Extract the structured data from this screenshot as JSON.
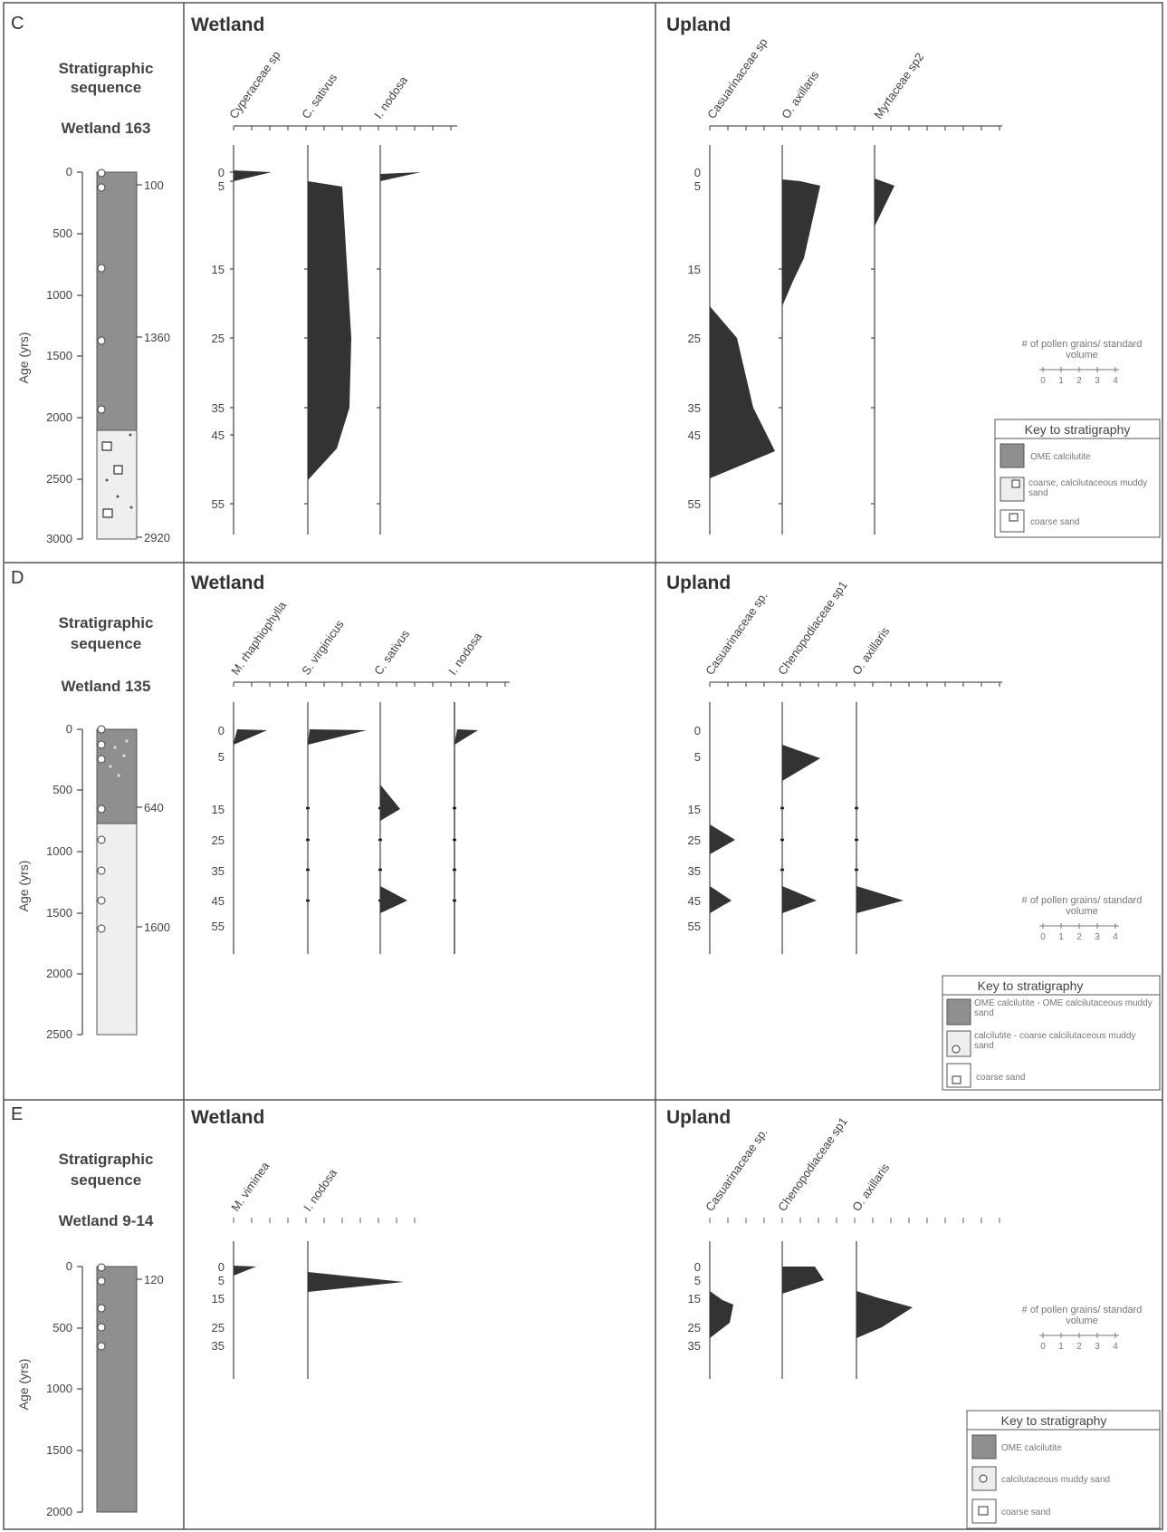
{
  "units_label": "# of pollen grains/ standard volume",
  "units_ticks": [
    "0",
    "1",
    "2",
    "3",
    "4"
  ],
  "panels": [
    {
      "letter": "C",
      "strat_title_1": "Stratigraphic",
      "strat_title_2": "sequence",
      "site": "Wetland 163",
      "age_axis_label": "Age (yrs)",
      "age_ticks": [
        "0",
        "500",
        "1000",
        "1500",
        "2000",
        "2500",
        "3000"
      ],
      "dates": [
        "100",
        "1360",
        "2920"
      ],
      "depth_ticks": [
        "0",
        "5",
        "15",
        "25",
        "35",
        "45",
        "55"
      ],
      "wetland_title": "Wetland",
      "upland_title": "Upland",
      "wetland_taxa": [
        "Cyperaceae sp",
        "C. sativus",
        "I. nodosa"
      ],
      "upland_taxa": [
        "Casuarinaceae sp",
        "O. axillaris",
        "Myrtaceae sp2"
      ],
      "key_title": "Key to stratigraphy",
      "key_items": [
        "OME calcilutite",
        "coarse, calcilutaceous muddy sand",
        "coarse sand"
      ]
    },
    {
      "letter": "D",
      "strat_title_1": "Stratigraphic",
      "strat_title_2": "sequence",
      "site": "Wetland 135",
      "age_axis_label": "Age (yrs)",
      "age_ticks": [
        "0",
        "500",
        "1000",
        "1500",
        "2000",
        "2500"
      ],
      "dates": [
        "640",
        "1600"
      ],
      "depth_ticks": [
        "0",
        "5",
        "15",
        "25",
        "35",
        "45",
        "55"
      ],
      "wetland_title": "Wetland",
      "upland_title": "Upland",
      "wetland_taxa": [
        "M. rhaphiophylla",
        "S. virginicus",
        "C. sativus",
        "I. nodosa"
      ],
      "upland_taxa": [
        "Casuarinaceae sp.",
        "Chenopodiaceae sp1",
        "O. axillaris"
      ],
      "key_title": "Key to stratigraphy",
      "key_items": [
        "OME calcilutite - OME calcilutaceous muddy sand",
        "calcilutite - coarse calcilutaceous muddy sand",
        "coarse sand"
      ]
    },
    {
      "letter": "E",
      "strat_title_1": "Stratigraphic",
      "strat_title_2": "sequence",
      "site": "Wetland 9-14",
      "age_axis_label": "Age (yrs)",
      "age_ticks": [
        "0",
        "500",
        "1000",
        "1500",
        "2000"
      ],
      "dates": [
        "120"
      ],
      "depth_ticks": [
        "0",
        "5",
        "15",
        "25",
        "35"
      ],
      "wetland_title": "Wetland",
      "upland_title": "Upland",
      "wetland_taxa": [
        "M. viminea",
        "I. nodosa"
      ],
      "upland_taxa": [
        "Casuarinaceae sp.",
        "Chenopodiaceae sp1",
        "O. axillaris"
      ],
      "key_title": "Key to stratigraphy",
      "key_items": [
        "OME calcilutite",
        "calcilutaceous muddy sand",
        "coarse sand"
      ]
    }
  ]
}
